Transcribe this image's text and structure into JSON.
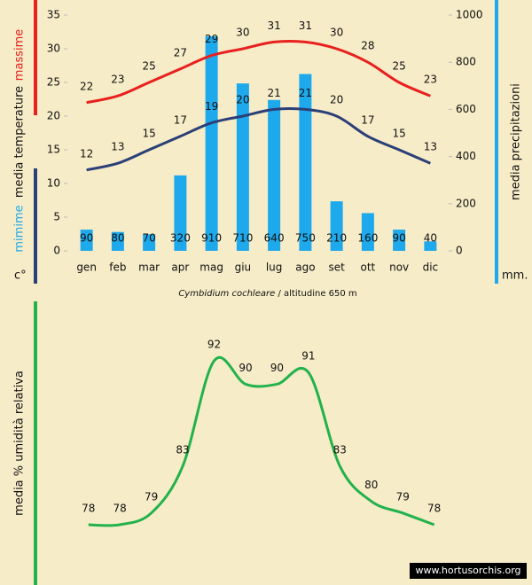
{
  "chart_data": [
    {
      "type": "combo",
      "y_label": "media  temperature",
      "y_unit": "c°",
      "y2_label": "media  precipitazioni",
      "y2_unit": "mm.",
      "subtitle": "Cymbidium cochleare",
      "subtitle_note": "/ altitudine 650 m",
      "categories": [
        "gen",
        "feb",
        "mar",
        "apr",
        "mag",
        "giu",
        "lug",
        "ago",
        "set",
        "ott",
        "nov",
        "dic"
      ],
      "ylim": [
        0,
        35
      ],
      "yticks": [
        0,
        5,
        10,
        15,
        20,
        25,
        30,
        35
      ],
      "y2lim": [
        0,
        1000
      ],
      "y2ticks": [
        0,
        200,
        400,
        600,
        800,
        1000
      ],
      "series": [
        {
          "type": "bar",
          "axis": "y2",
          "color": "#1ea9ec",
          "values": [
            90,
            80,
            70,
            320,
            910,
            710,
            640,
            750,
            210,
            160,
            90,
            40
          ]
        },
        {
          "type": "line",
          "name": "massime",
          "color": "#e8201e",
          "values": [
            22,
            23,
            25,
            27,
            29,
            30,
            31,
            31,
            30,
            28,
            25,
            23
          ]
        },
        {
          "type": "line",
          "name": "mimime",
          "color": "#2b3f78",
          "values": [
            12,
            13,
            15,
            17,
            19,
            20,
            21,
            21,
            20,
            17,
            15,
            13
          ]
        }
      ]
    },
    {
      "type": "line",
      "y_label": "media %  umidità relativa",
      "color": "#22b24c",
      "values": [
        78,
        78,
        79,
        83,
        92,
        90,
        90,
        91,
        83,
        80,
        79,
        78
      ],
      "watermark": "www.hortusorchis.org"
    }
  ]
}
